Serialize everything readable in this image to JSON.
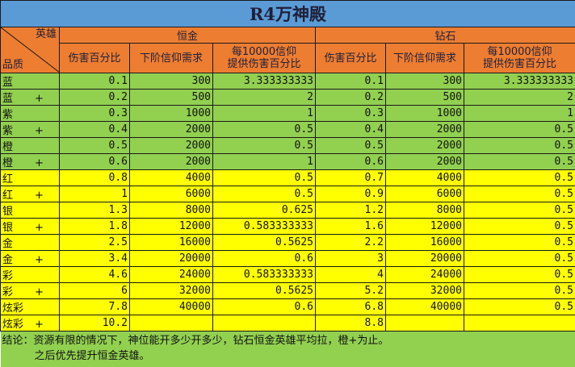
{
  "title": "R4万神殿",
  "header": {
    "corner_hero": "英雄",
    "corner_quality": "品质",
    "groups": [
      "恒金",
      "钻石"
    ],
    "columns": [
      "伤害百分比",
      "下阶信仰需求",
      "每10000信仰\n提供伤害百分比"
    ],
    "col3_line1": "每10000信仰",
    "col3_line2": "提供伤害百分比"
  },
  "colors": {
    "title": "#5b9bd5",
    "header": "#ed7d31",
    "green": "#92d050",
    "yellow": "#ffff00"
  },
  "rows": [
    {
      "q": "蓝",
      "plus": "",
      "c": [
        "0.1",
        "300",
        "3.333333333",
        "0.1",
        "300",
        "3.333333333"
      ],
      "color": "green"
    },
    {
      "q": "蓝",
      "plus": "+",
      "c": [
        "0.2",
        "500",
        "2",
        "0.2",
        "500",
        "2"
      ],
      "color": "green"
    },
    {
      "q": "紫",
      "plus": "",
      "c": [
        "0.3",
        "1000",
        "1",
        "0.3",
        "1000",
        "1"
      ],
      "color": "green"
    },
    {
      "q": "紫",
      "plus": "+",
      "c": [
        "0.4",
        "2000",
        "0.5",
        "0.4",
        "2000",
        "0.5"
      ],
      "color": "green"
    },
    {
      "q": "橙",
      "plus": "",
      "c": [
        "0.5",
        "2000",
        "0.5",
        "0.5",
        "2000",
        "0.5"
      ],
      "color": "green"
    },
    {
      "q": "橙",
      "plus": "+",
      "c": [
        "0.6",
        "2000",
        "1",
        "0.6",
        "2000",
        "0.5"
      ],
      "color": "green"
    },
    {
      "q": "红",
      "plus": "",
      "c": [
        "0.8",
        "4000",
        "0.5",
        "0.7",
        "4000",
        "0.5"
      ],
      "color": "yellow"
    },
    {
      "q": "红",
      "plus": "+",
      "c": [
        "1",
        "6000",
        "0.5",
        "0.9",
        "6000",
        "0.5"
      ],
      "color": "yellow"
    },
    {
      "q": "银",
      "plus": "",
      "c": [
        "1.3",
        "8000",
        "0.625",
        "1.2",
        "8000",
        "0.5"
      ],
      "color": "yellow"
    },
    {
      "q": "银",
      "plus": "+",
      "c": [
        "1.8",
        "12000",
        "0.583333333",
        "1.6",
        "12000",
        "0.5"
      ],
      "color": "yellow"
    },
    {
      "q": "金",
      "plus": "",
      "c": [
        "2.5",
        "16000",
        "0.5625",
        "2.2",
        "16000",
        "0.5"
      ],
      "color": "yellow"
    },
    {
      "q": "金",
      "plus": "+",
      "c": [
        "3.4",
        "20000",
        "0.6",
        "3",
        "20000",
        "0.5"
      ],
      "color": "yellow"
    },
    {
      "q": "彩",
      "plus": "",
      "c": [
        "4.6",
        "24000",
        "0.583333333",
        "4",
        "24000",
        "0.5"
      ],
      "color": "yellow"
    },
    {
      "q": "彩",
      "plus": "+",
      "c": [
        "6",
        "32000",
        "0.5625",
        "5.2",
        "32000",
        "0.5"
      ],
      "color": "yellow"
    },
    {
      "q": "炫彩",
      "plus": "",
      "c": [
        "7.8",
        "40000",
        "0.6",
        "6.8",
        "40000",
        "0.5"
      ],
      "color": "yellow"
    },
    {
      "q": "炫彩",
      "plus": "+",
      "c": [
        "10.2",
        "",
        "",
        "8.8",
        "",
        ""
      ],
      "color": "yellow"
    }
  ],
  "conclusion": {
    "line1": "结论：资源有限的情况下，神位能开多少开多少，钻石恒金英雄平均拉，橙+为止。",
    "line2": "之后优先提升恒金英雄。"
  }
}
